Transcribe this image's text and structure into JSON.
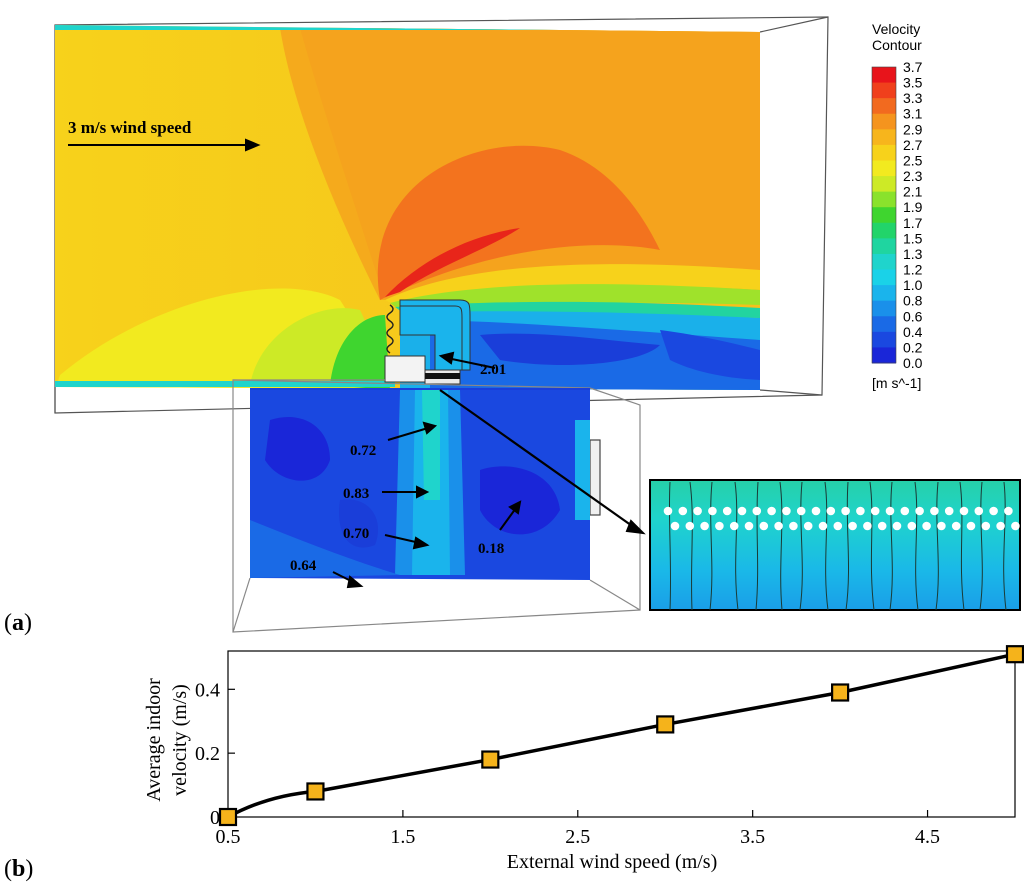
{
  "panel_a": {
    "label_open": "(",
    "label_letter": "a",
    "label_close": ")",
    "wind_text": "3 m/s wind speed",
    "colorbar": {
      "title_line1": "Velocity",
      "title_line2": "Contour",
      "ticks": [
        "3.7",
        "3.5",
        "3.3",
        "3.1",
        "2.9",
        "2.7",
        "2.5",
        "2.3",
        "2.1",
        "1.9",
        "1.7",
        "1.5",
        "1.3",
        "1.2",
        "1.0",
        "0.8",
        "0.6",
        "0.4",
        "0.2",
        "0.0"
      ],
      "colors": [
        "#e8141b",
        "#f0401c",
        "#f26a1f",
        "#f5941e",
        "#f7b51c",
        "#f7d21b",
        "#f2ea1f",
        "#cdea26",
        "#8ae22c",
        "#3fd52f",
        "#22d46a",
        "#1fd5a0",
        "#1fd4cc",
        "#1ad2e8",
        "#1ab4ec",
        "#1a90ea",
        "#1a6ae6",
        "#1a48e0",
        "#1a26d8"
      ],
      "unit": "[m s^-1]"
    },
    "annotations": [
      "2.01",
      "0.72",
      "0.83",
      "0.70",
      "0.18",
      "0.64"
    ]
  },
  "panel_b": {
    "label_open": "(",
    "label_letter": "b",
    "label_close": ")"
  },
  "chart_data": {
    "type": "line",
    "x": [
      0.5,
      1.0,
      2.0,
      3.0,
      4.0,
      5.0
    ],
    "series": [
      {
        "values": [
          0.0,
          0.08,
          0.18,
          0.29,
          0.39,
          0.51
        ]
      }
    ],
    "xlabel": "External wind speed (m/s)",
    "ylabel_line1": "Average indoor",
    "ylabel_line2": "velocity  (m/s)",
    "xticks": [
      "0.5",
      "1.5",
      "2.5",
      "3.5",
      "4.5"
    ],
    "xtick_values": [
      0.5,
      1.5,
      2.5,
      3.5,
      4.5
    ],
    "yticks": [
      "0",
      "0.2",
      "0.4"
    ],
    "ytick_values": [
      0,
      0.2,
      0.4
    ],
    "xlim": [
      0.5,
      5.0
    ],
    "ylim": [
      0,
      0.52
    ],
    "grid": false,
    "marker_color": "#f5b31b"
  }
}
